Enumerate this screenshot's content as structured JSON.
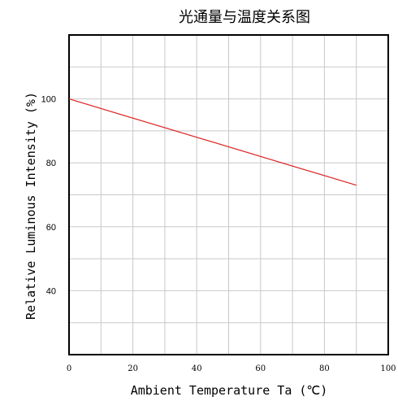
{
  "chart_data": {
    "type": "line",
    "title": "光通量与温度关系图",
    "xlabel": "Ambient Temperature Ta (℃)",
    "ylabel": "Relative Luminous Intensity (%)",
    "xlim": [
      0,
      100
    ],
    "ylim": [
      20,
      120
    ],
    "x_ticks": [
      0,
      20,
      40,
      60,
      80,
      100
    ],
    "y_ticks": [
      40,
      60,
      80,
      100
    ],
    "grid": true,
    "series": [
      {
        "color": "#e02020",
        "x": [
          0,
          90
        ],
        "y": [
          100,
          73
        ]
      }
    ]
  }
}
